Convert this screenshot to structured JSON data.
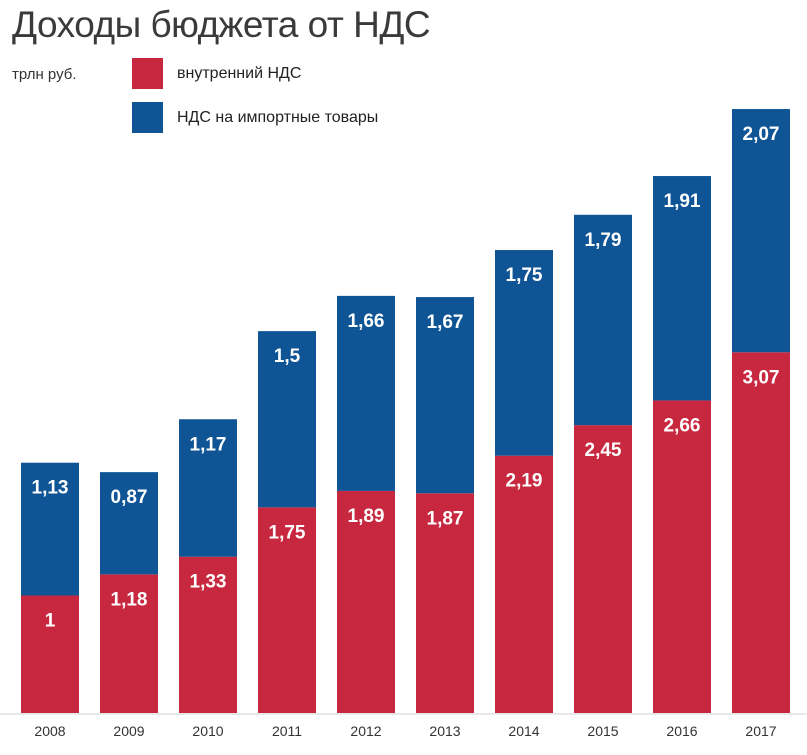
{
  "chart_data": {
    "type": "bar",
    "stacked": true,
    "title": "Доходы бюджета от НДС",
    "unit": "трлн руб.",
    "categories": [
      "2008",
      "2009",
      "2010",
      "2011",
      "2012",
      "2013",
      "2014",
      "2015",
      "2016",
      "2017"
    ],
    "series": [
      {
        "name": "внутренний НДС",
        "color": "#c8283f",
        "values": [
          1,
          1.18,
          1.33,
          1.75,
          1.89,
          1.87,
          2.19,
          2.45,
          2.66,
          3.07
        ],
        "labels": [
          "1",
          "1,18",
          "1,33",
          "1,75",
          "1,89",
          "1,87",
          "2,19",
          "2,45",
          "2,66",
          "3,07"
        ]
      },
      {
        "name": "НДС на импортные товары",
        "color": "#0f5596",
        "values": [
          1.13,
          0.87,
          1.17,
          1.5,
          1.66,
          1.67,
          1.75,
          1.79,
          1.91,
          2.07
        ],
        "labels": [
          "1,13",
          "0,87",
          "1,17",
          "1,5",
          "1,66",
          "1,67",
          "1,75",
          "1,79",
          "1,91",
          "2,07"
        ]
      }
    ],
    "legend_position": "top-left",
    "grid": false
  }
}
